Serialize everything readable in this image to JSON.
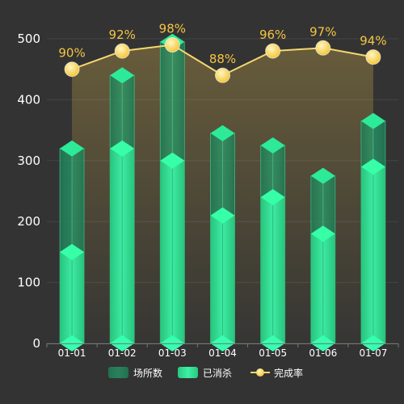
{
  "chart_data": {
    "type": "bar",
    "categories": [
      "01-01",
      "01-02",
      "01-03",
      "01-04",
      "01-05",
      "01-06",
      "01-07"
    ],
    "series": [
      {
        "name": "场所数",
        "type": "bar",
        "values": [
          320,
          440,
          495,
          345,
          325,
          275,
          365
        ]
      },
      {
        "name": "已消杀",
        "type": "bar",
        "values": [
          150,
          320,
          300,
          210,
          240,
          180,
          290
        ]
      },
      {
        "name": "完成率",
        "type": "line",
        "values": [
          90,
          92,
          98,
          88,
          96,
          97,
          94
        ],
        "value_labels": [
          "90%",
          "92%",
          "98%",
          "88%",
          "96%",
          "97%",
          "94%"
        ],
        "plotted_at": [
          450,
          480,
          490,
          440,
          480,
          485,
          470
        ]
      }
    ],
    "ylim": [
      0,
      500
    ],
    "yticks": [
      "0",
      "100",
      "200",
      "300",
      "400",
      "500"
    ],
    "grid": true,
    "legend_position": "bottom",
    "colors": {
      "background": "#333333",
      "bar_total": "#2bd38a",
      "bar_done": "#33f5a0",
      "line": "#f5d76e",
      "marker": "#ffe066",
      "label": "#f5c542",
      "area": "#c8a84a"
    }
  }
}
